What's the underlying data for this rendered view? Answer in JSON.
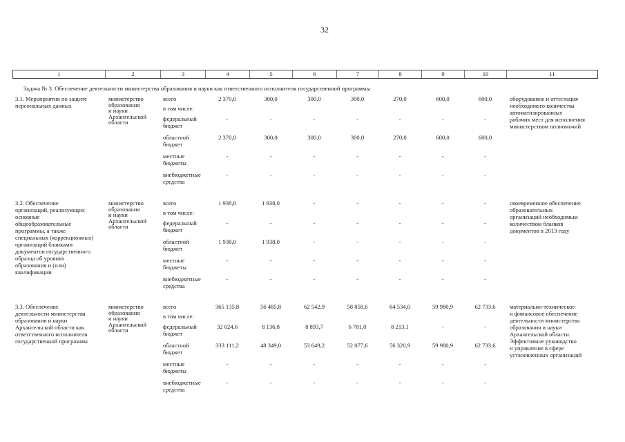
{
  "page_number": "32",
  "header_columns": [
    "1",
    "2",
    "3",
    "4",
    "5",
    "6",
    "7",
    "8",
    "9",
    "10",
    "11"
  ],
  "task_title": "Задача № 3. Обеспечение деятельности министерства образования и науки как ответственного исполнителя государственной программы",
  "sections": [
    {
      "title": [
        "3.1. Мероприятия по защите",
        "персональных данных"
      ],
      "executor": [
        "министерство",
        "образования",
        "и науки",
        "Архангельской",
        "области"
      ],
      "rows": [
        {
          "label": [
            "всего"
          ],
          "values": [
            "2 370,0",
            "300,0",
            "300,0",
            "300,0",
            "270,0",
            "600,0",
            "600,0"
          ]
        },
        {
          "label": [
            "в том числе:"
          ],
          "values": []
        },
        {
          "label": [
            "федеральный",
            "бюджет"
          ],
          "values": [
            "-",
            "-",
            "-",
            "-",
            "-",
            "-",
            "-"
          ]
        },
        {
          "label": [
            "областной",
            "бюджет"
          ],
          "values": [
            "2 370,0",
            "300,0",
            "300,0",
            "300,0",
            "270,0",
            "600,0",
            "600,0"
          ]
        },
        {
          "label": [
            "местные",
            "бюджеты"
          ],
          "values": [
            "-",
            "-",
            "-",
            "-",
            "-",
            "-",
            "-"
          ]
        },
        {
          "label": [
            "внебюджетные",
            "средства"
          ],
          "values": [
            "-",
            "-",
            "-",
            "-",
            "-",
            "-",
            "-"
          ]
        }
      ],
      "result": [
        "оборудование и аттестация",
        "необходимого количества",
        "автоматизированных",
        "рабочих мест для исполнения",
        "министерством полномочий"
      ]
    },
    {
      "title": [
        "3.2. Обеспечение",
        "организаций, реализующих",
        "основные",
        "общеобразовательные",
        "программы, а также",
        "специальных (коррекционных)",
        "организаций бланками",
        "документов государственного",
        "образца об уровнях",
        "образования и (или)",
        "квалификации"
      ],
      "executor": [
        "министерство",
        "образования",
        "и науки",
        "Архангельской",
        "области"
      ],
      "rows": [
        {
          "label": [
            "всего"
          ],
          "values": [
            "1 938,0",
            "1 938,0",
            "-",
            "-",
            "-",
            "-",
            "-"
          ]
        },
        {
          "label": [
            "в том числе:"
          ],
          "values": []
        },
        {
          "label": [
            "федеральный",
            "бюджет"
          ],
          "values": [
            "-",
            "-",
            "-",
            "-",
            "-",
            "-",
            "-"
          ]
        },
        {
          "label": [
            "областной",
            "бюджет"
          ],
          "values": [
            "1 938,0",
            "1 938,0",
            "-",
            "-",
            "-",
            "-",
            "-"
          ]
        },
        {
          "label": [
            "местные",
            "бюджеты"
          ],
          "values": [
            "-",
            "-",
            "-",
            "-",
            "-",
            "-",
            "-"
          ]
        },
        {
          "label": [
            "внебюджетные",
            "средства"
          ],
          "values": [
            "-",
            "-",
            "-",
            "-",
            "-",
            "-",
            "-"
          ]
        }
      ],
      "result": [
        "своевременное обеспечение",
        "образовательных",
        "организаций необходимым",
        "количеством бланков",
        "документов в 2013 году"
      ]
    },
    {
      "title": [
        "3.3. Обеспечение",
        "деятельности министерства",
        "образования и науки",
        "Архангельской области как",
        "ответственного исполнителя",
        "государственной программы"
      ],
      "executor": [
        "министерство",
        "образования",
        "и науки",
        "Архангельской",
        "области"
      ],
      "rows": [
        {
          "label": [
            "всего"
          ],
          "values": [
            "365 135,8",
            "56 485,8",
            "62 542,9",
            "58 858,6",
            "64 534,0",
            "59 980,9",
            "62 733,6"
          ]
        },
        {
          "label": [
            "в том числе:"
          ],
          "values": []
        },
        {
          "label": [
            "федеральный",
            "бюджет"
          ],
          "values": [
            "32 024,6",
            "8 136,8",
            "8 893,7",
            "6 781,0",
            "8 213,1",
            "-",
            "-"
          ]
        },
        {
          "label": [
            "областной",
            "бюджет"
          ],
          "values": [
            "333 111,2",
            "48 349,0",
            "53 649,2",
            "52 077,6",
            "56 320,9",
            "59 980,9",
            "62 733,6"
          ]
        },
        {
          "label": [
            "местные",
            "бюджеты"
          ],
          "values": [
            "-",
            "-",
            "-",
            "-",
            "-",
            "-",
            "-"
          ]
        },
        {
          "label": [
            "внебюджетные",
            "средства"
          ],
          "values": [
            "-",
            "-",
            "-",
            "-",
            "-",
            "-",
            "-"
          ]
        }
      ],
      "result": [
        "материально-техническое",
        "и финансовое обеспечение",
        "деятельности министерства",
        "образования и науки",
        "Архангельской области.",
        "Эффективное руководство",
        "и управление в сфере",
        "установленных организаций"
      ]
    }
  ]
}
